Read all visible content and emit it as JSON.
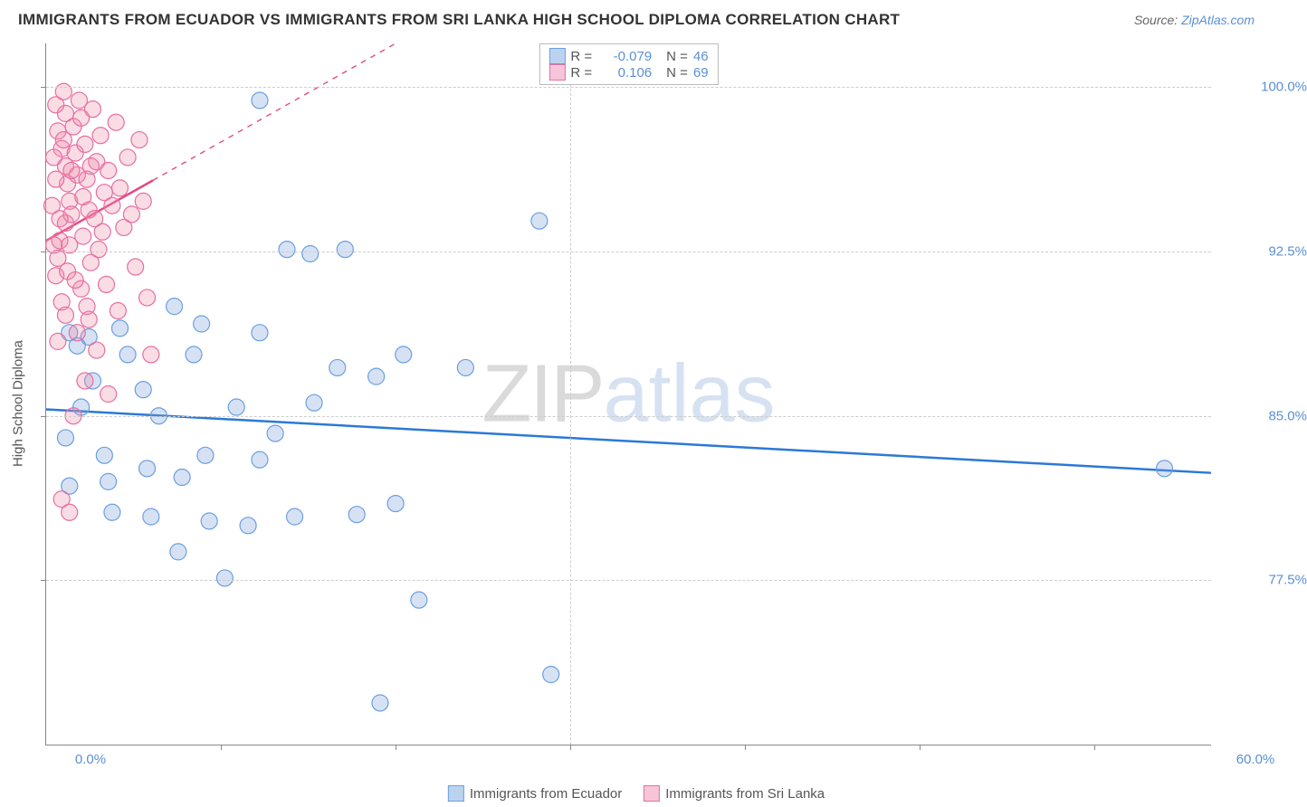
{
  "header": {
    "title": "IMMIGRANTS FROM ECUADOR VS IMMIGRANTS FROM SRI LANKA HIGH SCHOOL DIPLOMA CORRELATION CHART",
    "source_prefix": "Source: ",
    "source_link": "ZipAtlas.com"
  },
  "chart": {
    "type": "scatter",
    "y_axis_title": "High School Diploma",
    "xlim": [
      0,
      60
    ],
    "ylim": [
      70,
      102
    ],
    "x_ticks": [
      0,
      60
    ],
    "x_tick_labels": [
      "0.0%",
      "60.0%"
    ],
    "x_minor_ticks": [
      9,
      18,
      27,
      36,
      45,
      54
    ],
    "y_ticks": [
      77.5,
      85.0,
      92.5,
      100.0
    ],
    "y_tick_labels": [
      "77.5%",
      "85.0%",
      "92.5%",
      "100.0%"
    ],
    "grid_color": "#cccccc",
    "background_color": "#ffffff",
    "axis_color": "#888888",
    "label_color": "#5b8fd6",
    "label_fontsize": 15,
    "marker_radius": 9,
    "marker_stroke_width": 1.2,
    "trend_line_width": 2.5,
    "series": [
      {
        "name": "Immigrants from Ecuador",
        "fill": "rgba(120,160,220,0.30)",
        "stroke": "#6b9fe0",
        "swatch_fill": "#bcd3ef",
        "swatch_stroke": "#6b9fe0",
        "r_value": "-0.079",
        "n_value": "46",
        "trend": {
          "x1": 0,
          "y1": 85.3,
          "x2": 60,
          "y2": 82.4,
          "color": "#2c79d6",
          "dash_from_x": null
        },
        "points": [
          [
            1.6,
            88.2
          ],
          [
            1.8,
            85.4
          ],
          [
            1.0,
            84.0
          ],
          [
            1.2,
            81.8
          ],
          [
            2.2,
            88.6
          ],
          [
            2.4,
            86.6
          ],
          [
            3.0,
            83.2
          ],
          [
            3.2,
            82.0
          ],
          [
            3.4,
            80.6
          ],
          [
            3.8,
            89.0
          ],
          [
            4.2,
            87.8
          ],
          [
            5.0,
            86.2
          ],
          [
            5.2,
            82.6
          ],
          [
            5.4,
            80.4
          ],
          [
            5.8,
            85.0
          ],
          [
            6.6,
            90.0
          ],
          [
            7.0,
            82.2
          ],
          [
            6.8,
            78.8
          ],
          [
            7.6,
            87.8
          ],
          [
            8.0,
            89.2
          ],
          [
            8.2,
            83.2
          ],
          [
            8.4,
            80.2
          ],
          [
            9.8,
            85.4
          ],
          [
            10.4,
            80.0
          ],
          [
            9.2,
            77.6
          ],
          [
            11.0,
            88.8
          ],
          [
            11.0,
            83.0
          ],
          [
            11.8,
            84.2
          ],
          [
            12.4,
            92.6
          ],
          [
            12.8,
            80.4
          ],
          [
            13.6,
            92.4
          ],
          [
            13.8,
            85.6
          ],
          [
            11.0,
            99.4
          ],
          [
            15.0,
            87.2
          ],
          [
            15.4,
            92.6
          ],
          [
            16.0,
            80.5
          ],
          [
            17.0,
            86.8
          ],
          [
            17.2,
            71.9
          ],
          [
            18.0,
            81.0
          ],
          [
            18.4,
            87.8
          ],
          [
            19.2,
            76.6
          ],
          [
            21.6,
            87.2
          ],
          [
            25.4,
            93.9
          ],
          [
            26.0,
            73.2
          ],
          [
            57.6,
            82.6
          ],
          [
            1.2,
            88.8
          ]
        ]
      },
      {
        "name": "Immigrants from Sri Lanka",
        "fill": "rgba(240,140,170,0.30)",
        "stroke": "#e76fa0",
        "swatch_fill": "#f6c6d8",
        "swatch_stroke": "#e76fa0",
        "r_value": "0.106",
        "n_value": "69",
        "trend": {
          "x1": 0,
          "y1": 93.0,
          "x2": 18,
          "y2": 102.0,
          "solid_to_x": 5.5,
          "color": "#e24a86"
        },
        "points": [
          [
            0.5,
            99.2
          ],
          [
            0.6,
            98.0
          ],
          [
            0.8,
            97.2
          ],
          [
            0.9,
            99.8
          ],
          [
            1.0,
            96.4
          ],
          [
            1.1,
            95.6
          ],
          [
            1.2,
            94.8
          ],
          [
            1.0,
            93.8
          ],
          [
            0.7,
            93.0
          ],
          [
            0.6,
            92.2
          ],
          [
            0.5,
            91.4
          ],
          [
            0.8,
            90.2
          ],
          [
            1.4,
            98.2
          ],
          [
            1.5,
            97.0
          ],
          [
            1.6,
            96.0
          ],
          [
            1.3,
            94.2
          ],
          [
            1.2,
            92.8
          ],
          [
            1.1,
            91.6
          ],
          [
            1.0,
            89.6
          ],
          [
            0.6,
            88.4
          ],
          [
            1.8,
            98.6
          ],
          [
            2.0,
            97.4
          ],
          [
            2.1,
            95.8
          ],
          [
            2.2,
            94.4
          ],
          [
            1.9,
            93.2
          ],
          [
            1.8,
            90.8
          ],
          [
            2.4,
            99.0
          ],
          [
            2.6,
            96.6
          ],
          [
            2.5,
            94.0
          ],
          [
            2.3,
            92.0
          ],
          [
            2.8,
            97.8
          ],
          [
            3.0,
            95.2
          ],
          [
            2.9,
            93.4
          ],
          [
            3.2,
            96.2
          ],
          [
            3.4,
            94.6
          ],
          [
            3.1,
            91.0
          ],
          [
            3.6,
            98.4
          ],
          [
            3.8,
            95.4
          ],
          [
            4.0,
            93.6
          ],
          [
            3.7,
            89.8
          ],
          [
            4.2,
            96.8
          ],
          [
            4.4,
            94.2
          ],
          [
            4.6,
            91.8
          ],
          [
            4.8,
            97.6
          ],
          [
            5.0,
            94.8
          ],
          [
            5.2,
            90.4
          ],
          [
            5.4,
            87.8
          ],
          [
            2.0,
            86.6
          ],
          [
            1.4,
            85.0
          ],
          [
            0.8,
            81.2
          ],
          [
            1.2,
            80.6
          ],
          [
            3.2,
            86.0
          ],
          [
            2.6,
            88.0
          ],
          [
            1.6,
            88.8
          ],
          [
            2.2,
            89.4
          ],
          [
            0.4,
            96.8
          ],
          [
            0.3,
            94.6
          ],
          [
            0.5,
            95.8
          ],
          [
            1.7,
            99.4
          ],
          [
            2.3,
            96.4
          ],
          [
            0.9,
            97.6
          ],
          [
            1.3,
            96.2
          ],
          [
            0.7,
            94.0
          ],
          [
            2.7,
            92.6
          ],
          [
            1.5,
            91.2
          ],
          [
            2.1,
            90.0
          ],
          [
            0.4,
            92.8
          ],
          [
            1.0,
            98.8
          ],
          [
            1.9,
            95.0
          ]
        ]
      }
    ]
  },
  "bottom_legend": [
    "Immigrants from Ecuador",
    "Immigrants from Sri Lanka"
  ],
  "watermark": {
    "part1": "ZIP",
    "part2": "atlas"
  }
}
